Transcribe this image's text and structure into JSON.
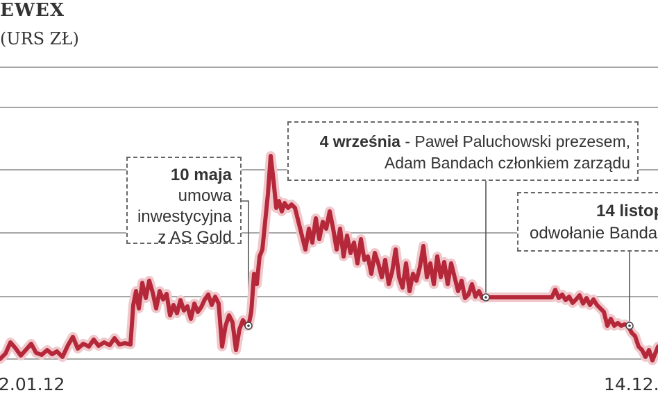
{
  "chart_data": {
    "type": "line",
    "title": "EWEX",
    "subtitle": "URS ZŁ)",
    "x_tick_labels": [
      "2.01.12",
      "14.12."
    ],
    "grid": true,
    "series": [
      {
        "points": [
          [
            0,
            518
          ],
          [
            8,
            510
          ],
          [
            15,
            494
          ],
          [
            22,
            502
          ],
          [
            30,
            513
          ],
          [
            38,
            504
          ],
          [
            45,
            496
          ],
          [
            52,
            509
          ],
          [
            60,
            512
          ],
          [
            68,
            505
          ],
          [
            75,
            511
          ],
          [
            82,
            507
          ],
          [
            90,
            515
          ],
          [
            98,
            498
          ],
          [
            105,
            486
          ],
          [
            112,
            503
          ],
          [
            120,
            496
          ],
          [
            128,
            500
          ],
          [
            135,
            490
          ],
          [
            142,
            499
          ],
          [
            150,
            494
          ],
          [
            158,
            498
          ],
          [
            165,
            488
          ],
          [
            172,
            497
          ],
          [
            180,
            495
          ],
          [
            188,
            497
          ],
          [
            192,
            440
          ],
          [
            196,
            420
          ],
          [
            200,
            445
          ],
          [
            205,
            408
          ],
          [
            210,
            430
          ],
          [
            215,
            405
          ],
          [
            220,
            422
          ],
          [
            225,
            445
          ],
          [
            230,
            420
          ],
          [
            235,
            432
          ],
          [
            240,
            424
          ],
          [
            245,
            455
          ],
          [
            250,
            440
          ],
          [
            255,
            452
          ],
          [
            260,
            433
          ],
          [
            265,
            448
          ],
          [
            270,
            442
          ],
          [
            275,
            460
          ],
          [
            280,
            438
          ],
          [
            285,
            450
          ],
          [
            290,
            443
          ],
          [
            295,
            432
          ],
          [
            300,
            425
          ],
          [
            305,
            440
          ],
          [
            310,
            428
          ],
          [
            315,
            438
          ],
          [
            320,
            500
          ],
          [
            325,
            470
          ],
          [
            330,
            455
          ],
          [
            335,
            465
          ],
          [
            340,
            505
          ],
          [
            345,
            475
          ],
          [
            350,
            462
          ],
          [
            355,
            470
          ],
          [
            358,
            470
          ],
          [
            362,
            450
          ],
          [
            366,
            395
          ],
          [
            370,
            410
          ],
          [
            374,
            370
          ],
          [
            378,
            360
          ],
          [
            382,
            320
          ],
          [
            386,
            280
          ],
          [
            390,
            225
          ],
          [
            394,
            260
          ],
          [
            398,
            300
          ],
          [
            402,
            290
          ],
          [
            406,
            305
          ],
          [
            410,
            293
          ],
          [
            415,
            300
          ],
          [
            420,
            295
          ],
          [
            425,
            300
          ],
          [
            430,
            320
          ],
          [
            435,
            340
          ],
          [
            440,
            360
          ],
          [
            445,
            330
          ],
          [
            450,
            350
          ],
          [
            455,
            315
          ],
          [
            460,
            345
          ],
          [
            465,
            320
          ],
          [
            470,
            330
          ],
          [
            475,
            305
          ],
          [
            480,
            330
          ],
          [
            485,
            360
          ],
          [
            490,
            330
          ],
          [
            495,
            370
          ],
          [
            500,
            340
          ],
          [
            505,
            365
          ],
          [
            510,
            350
          ],
          [
            515,
            380
          ],
          [
            520,
            345
          ],
          [
            525,
            375
          ],
          [
            530,
            370
          ],
          [
            535,
            395
          ],
          [
            540,
            365
          ],
          [
            545,
            380
          ],
          [
            550,
            400
          ],
          [
            555,
            375
          ],
          [
            560,
            410
          ],
          [
            565,
            392
          ],
          [
            570,
            360
          ],
          [
            575,
            400
          ],
          [
            580,
            415
          ],
          [
            585,
            380
          ],
          [
            590,
            420
          ],
          [
            595,
            395
          ],
          [
            600,
            405
          ],
          [
            605,
            385
          ],
          [
            610,
            355
          ],
          [
            615,
            400
          ],
          [
            620,
            380
          ],
          [
            625,
            410
          ],
          [
            630,
            370
          ],
          [
            635,
            400
          ],
          [
            640,
            378
          ],
          [
            645,
            410
          ],
          [
            650,
            380
          ],
          [
            655,
            400
          ],
          [
            660,
            420
          ],
          [
            665,
            405
          ],
          [
            670,
            430
          ],
          [
            675,
            425
          ],
          [
            680,
            410
          ],
          [
            685,
            428
          ],
          [
            690,
            420
          ],
          [
            695,
            430
          ],
          [
            700,
            429
          ],
          [
            760,
            429
          ],
          [
            795,
            429
          ],
          [
            800,
            418
          ],
          [
            805,
            430
          ],
          [
            810,
            425
          ],
          [
            815,
            433
          ],
          [
            820,
            428
          ],
          [
            825,
            437
          ],
          [
            830,
            432
          ],
          [
            835,
            426
          ],
          [
            840,
            438
          ],
          [
            845,
            430
          ],
          [
            850,
            440
          ],
          [
            855,
            432
          ],
          [
            860,
            440
          ],
          [
            865,
            445
          ],
          [
            870,
            450
          ],
          [
            875,
            470
          ],
          [
            880,
            460
          ],
          [
            885,
            470
          ],
          [
            890,
            466
          ],
          [
            895,
            470
          ],
          [
            900,
            468
          ],
          [
            905,
            470
          ],
          [
            910,
            480
          ],
          [
            915,
            485
          ],
          [
            920,
            500
          ],
          [
            925,
            505
          ],
          [
            930,
            515
          ],
          [
            935,
            505
          ],
          [
            940,
            520
          ],
          [
            948,
            500
          ]
        ]
      }
    ],
    "markers": [
      {
        "x": 358,
        "y": 470
      },
      {
        "x": 700,
        "y": 429
      },
      {
        "x": 907,
        "y": 470
      }
    ],
    "annotations": [
      {
        "date": "10 maja",
        "lines": [
          "umowa",
          "inwestycyjna",
          "z AS Gold"
        ]
      },
      {
        "date": "4 września",
        "lines": [
          "- Paweł Paluchowski prezesem,",
          "Adam Bandach członkiem zarządu"
        ]
      },
      {
        "date": "14 listop",
        "lines": [
          "odwołanie Banda"
        ]
      }
    ],
    "colors": {
      "line": "#b5283a",
      "glow": "#f0c8cc",
      "grid": "#8a8a8a",
      "text": "#333333"
    }
  }
}
